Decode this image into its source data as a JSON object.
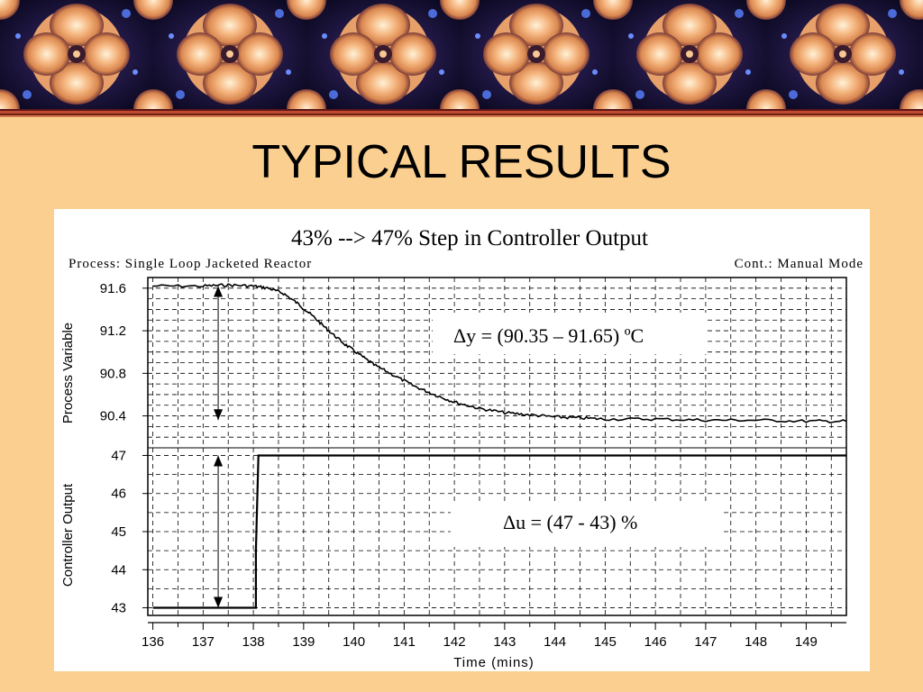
{
  "slide": {
    "title": "TYPICAL RESULTS"
  },
  "chart_data": {
    "type": "line",
    "title": "43% --> 47% Step in Controller Output",
    "subtitle_left": "Process: Single Loop Jacketed Reactor",
    "subtitle_right": "Cont.: Manual Mode",
    "xlabel": "Time (mins)",
    "xlim": [
      135.9,
      149.8
    ],
    "x_ticks": [
      "136",
      "137",
      "138",
      "139",
      "140",
      "141",
      "142",
      "143",
      "144",
      "145",
      "146",
      "147",
      "148",
      "149"
    ],
    "grid": true,
    "panels": [
      {
        "ylabel": "Process Variable",
        "ylim": [
          90.1,
          91.7
        ],
        "y_ticks": [
          "91.6",
          "91.2",
          "90.8",
          "90.4"
        ],
        "series": [
          {
            "x": [
              136,
              137,
              137.5,
              138,
              138.3,
              138.6,
              138.9,
              139.2,
              139.5,
              139.8,
              140.1,
              140.4,
              140.8,
              141.2,
              141.6,
              142.0,
              142.5,
              143.0,
              143.5,
              144.0,
              144.5,
              145.0,
              146.0,
              147.0,
              148.0,
              149.0,
              149.8
            ],
            "y": [
              91.62,
              91.62,
              91.63,
              91.62,
              91.6,
              91.55,
              91.45,
              91.33,
              91.2,
              91.08,
              90.98,
              90.88,
              90.78,
              90.68,
              90.6,
              90.53,
              90.47,
              90.43,
              90.41,
              90.39,
              90.38,
              90.37,
              90.37,
              90.36,
              90.36,
              90.35,
              90.35
            ]
          }
        ],
        "annotation": "Δy = (90.35 – 91.65) ºC"
      },
      {
        "ylabel": "Controller Output",
        "ylim": [
          42.8,
          47.2
        ],
        "y_ticks": [
          "47",
          "46",
          "45",
          "44",
          "43"
        ],
        "series": [
          {
            "x": [
              136,
              138.05,
              138.05,
              138.1,
              149.8
            ],
            "y": [
              43,
              43,
              44.5,
              47,
              47
            ]
          }
        ],
        "annotation": "Δu = (47 - 43) %"
      }
    ]
  },
  "colors": {
    "background": "#fbcf90",
    "line": "#000000",
    "grid": "#000000"
  }
}
